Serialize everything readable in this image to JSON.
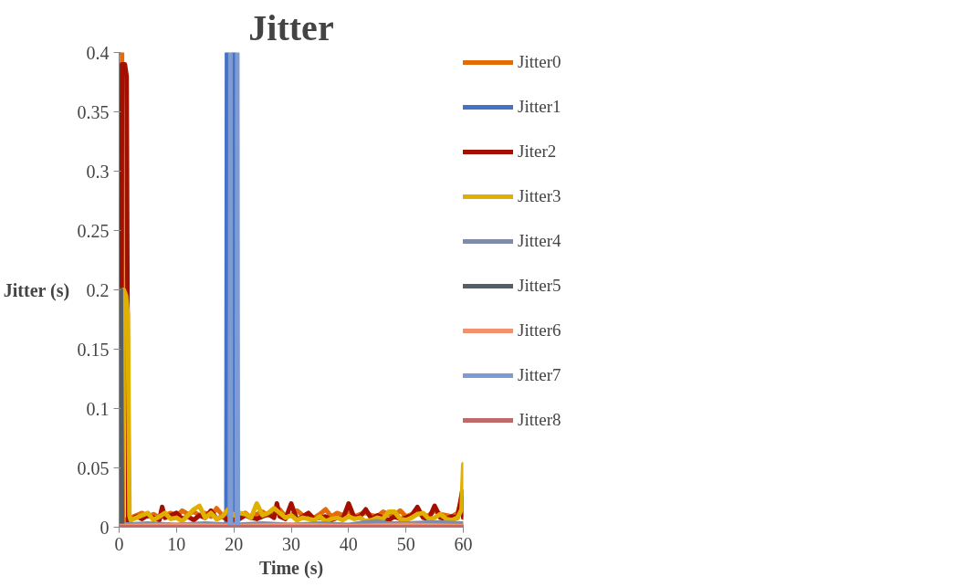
{
  "chart_data": {
    "type": "line",
    "title": "Jitter",
    "xlabel": "Time (s)",
    "ylabel": "Jitter (s)",
    "xlim": [
      0,
      60
    ],
    "ylim": [
      0,
      0.4
    ],
    "xticks": [
      0,
      10,
      20,
      30,
      40,
      50,
      60
    ],
    "yticks": [
      0,
      0.05,
      0.1,
      0.15,
      0.2,
      0.25,
      0.3,
      0.35,
      0.4
    ],
    "grid": false,
    "legend": "right",
    "marker": "none",
    "line_style": "solid",
    "series": [
      {
        "name": "Jitter0",
        "color": "#e36c09",
        "x": [
          0,
          0.5,
          0.7,
          2,
          3,
          4,
          5,
          6,
          7,
          8,
          9,
          10,
          11,
          12,
          13,
          14,
          15,
          16,
          17,
          18,
          19,
          21,
          22,
          23,
          24,
          25,
          26,
          27,
          28,
          29,
          30,
          31,
          32,
          33,
          34,
          35,
          36,
          37,
          38,
          39,
          40,
          41,
          42,
          43,
          44,
          45,
          46,
          47,
          48,
          49,
          50,
          51,
          52,
          53,
          54,
          55,
          56,
          57,
          58,
          59,
          59.8,
          60
        ],
        "values": [
          0.4,
          0.4,
          0.005,
          0.008,
          0.01,
          0.012,
          0.009,
          0.011,
          0.008,
          0.01,
          0.012,
          0.009,
          0.014,
          0.011,
          0.013,
          0.01,
          0.012,
          0.009,
          0.016,
          0.01,
          0.008,
          0.01,
          0.012,
          0.008,
          0.011,
          0.013,
          0.01,
          0.012,
          0.015,
          0.009,
          0.01,
          0.014,
          0.01,
          0.009,
          0.008,
          0.011,
          0.015,
          0.009,
          0.012,
          0.01,
          0.014,
          0.009,
          0.011,
          0.012,
          0.01,
          0.009,
          0.013,
          0.011,
          0.01,
          0.014,
          0.009,
          0.011,
          0.013,
          0.009,
          0.01,
          0.014,
          0.011,
          0.01,
          0.009,
          0.012,
          0.025,
          0.01
        ]
      },
      {
        "name": "Jitter1",
        "color": "#4472c4",
        "x": [
          0,
          18.7,
          18.8,
          18.9,
          19.85,
          19.95,
          20.05,
          60
        ],
        "values": [
          0,
          0,
          0.4,
          0,
          0,
          0.4,
          0,
          0
        ]
      },
      {
        "name": "Jiter2",
        "color": "#a50f00",
        "x": [
          0.3,
          0.5,
          1.0,
          1.3,
          1.6,
          2,
          3,
          4,
          5,
          6,
          7,
          7.5,
          8,
          9,
          10,
          11,
          12,
          13,
          14,
          15,
          16,
          17,
          18,
          19,
          21,
          22,
          23,
          24,
          25,
          26,
          27,
          27.5,
          28,
          29,
          30,
          31,
          32,
          33,
          34,
          35,
          36,
          37,
          38,
          39,
          40,
          41,
          42,
          43,
          44,
          45,
          46,
          47,
          48,
          49,
          50,
          51,
          52,
          53,
          54,
          55,
          56,
          57,
          58,
          59,
          59.8,
          60
        ],
        "values": [
          0,
          0.39,
          0.39,
          0.38,
          0.005,
          0.006,
          0.009,
          0.007,
          0.01,
          0.008,
          0.006,
          0.017,
          0.008,
          0.01,
          0.012,
          0.007,
          0.009,
          0.006,
          0.01,
          0.008,
          0.014,
          0.007,
          0.009,
          0.006,
          0.007,
          0.01,
          0.008,
          0.007,
          0.009,
          0.011,
          0.008,
          0.02,
          0.009,
          0.007,
          0.02,
          0.006,
          0.009,
          0.012,
          0.007,
          0.008,
          0.009,
          0.006,
          0.008,
          0.007,
          0.02,
          0.008,
          0.009,
          0.015,
          0.007,
          0.01,
          0.008,
          0.006,
          0.009,
          0.007,
          0.008,
          0.01,
          0.017,
          0.008,
          0.007,
          0.018,
          0.008,
          0.007,
          0.009,
          0.008,
          0.03,
          0.008
        ]
      },
      {
        "name": "Jitter3",
        "color": "#e0b000",
        "x": [
          0.5,
          0.8,
          1.2,
          1.5,
          1.8,
          2,
          3,
          4,
          5,
          6,
          7,
          8,
          9,
          10,
          11,
          12,
          13,
          14,
          15,
          16,
          17,
          18,
          19,
          20,
          21,
          22,
          23,
          24,
          25,
          26,
          27,
          28,
          29,
          30,
          31,
          32,
          33,
          34,
          35,
          36,
          37,
          38,
          39,
          40,
          41,
          42,
          43,
          44,
          45,
          46,
          47,
          48,
          49,
          50,
          51,
          52,
          53,
          54,
          55,
          56,
          57,
          58,
          59,
          59.7,
          60
        ],
        "values": [
          0,
          0.2,
          0.195,
          0.18,
          0.01,
          0.006,
          0.008,
          0.01,
          0.012,
          0.006,
          0.009,
          0.012,
          0.007,
          0.008,
          0.005,
          0.01,
          0.015,
          0.018,
          0.008,
          0.012,
          0.007,
          0.009,
          0.015,
          0.01,
          0.012,
          0.011,
          0.008,
          0.02,
          0.01,
          0.012,
          0.016,
          0.012,
          0.008,
          0.01,
          0.006,
          0.008,
          0.007,
          0.006,
          0.009,
          0.005,
          0.007,
          0.008,
          0.006,
          0.009,
          0.007,
          0.008,
          0.005,
          0.006,
          0.008,
          0.007,
          0.013,
          0.013,
          0.007,
          0.006,
          0.008,
          0.011,
          0.012,
          0.007,
          0.008,
          0.011,
          0.007,
          0.006,
          0.008,
          0.015,
          0.053
        ]
      },
      {
        "name": "Jitter4",
        "color": "#7f8ba8",
        "x": [
          0,
          5,
          10,
          15,
          20,
          25,
          30,
          35,
          40,
          43,
          45,
          47,
          50,
          55,
          60
        ],
        "values": [
          0.002,
          0.003,
          0.002,
          0.003,
          0.002,
          0.003,
          0.002,
          0.003,
          0.002,
          0.004,
          0.005,
          0.003,
          0.003,
          0.004,
          0.003
        ]
      },
      {
        "name": "Jitter5",
        "color": "#555d66",
        "x": [
          0,
          0.3,
          0.5
        ],
        "values": [
          0.2,
          0.2,
          0
        ]
      },
      {
        "name": "Jitter6",
        "color": "#f4906a",
        "x": [
          0,
          10,
          20,
          30,
          40,
          50,
          60
        ],
        "values": [
          0.001,
          0.002,
          0.001,
          0.002,
          0.001,
          0.002,
          0.001
        ]
      },
      {
        "name": "Jitter7",
        "color": "#7f9bd4",
        "x": [
          0,
          19.3,
          19.4,
          19.5,
          20.5,
          20.6,
          20.7,
          60
        ],
        "values": [
          0,
          0,
          0.4,
          0,
          0,
          0.4,
          0,
          0
        ]
      },
      {
        "name": "Jitter8",
        "color": "#c0696a",
        "x": [
          0,
          60
        ],
        "values": [
          0,
          0
        ]
      }
    ]
  }
}
